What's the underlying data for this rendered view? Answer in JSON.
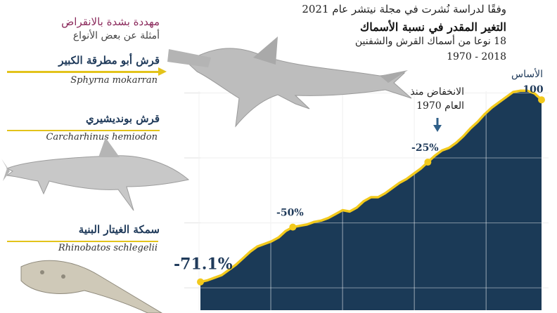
{
  "header": {
    "source": "وفقًا لدراسة نُشرت في مجلة نيتشر عام 2021",
    "title": "التغير المقدر في نسبة الأسماك",
    "subtitle_line1": "18 نوعا من أسماك القرش والشفنين",
    "subtitle_line2": "1970 - 2018"
  },
  "panel": {
    "title": "مهددة بشدة بالانقراض",
    "subtitle": "أمثلة عن بعض الأنواع",
    "species": [
      {
        "name": "قرش أبو مطرقة الكبير",
        "latin": "Sphyrna mokarran",
        "icon": "hammerhead-shark-icon"
      },
      {
        "name": "قرش بونديشيري",
        "latin": "Carcharhinus hemiodon",
        "icon": "requiem-shark-icon"
      },
      {
        "name": "سمكة الغيتار البنية",
        "latin": "Rhinobatos schlegelii",
        "icon": "guitarfish-icon"
      }
    ]
  },
  "colors": {
    "area": "#1b3a57",
    "line": "#f2c91c",
    "label": "#1f3a5a",
    "accent_line": "#e3c31b",
    "grid": "#ffffff"
  },
  "chart_data": {
    "type": "area",
    "baseline_label": "الأساس",
    "annotation": "الانخفاض منذ العام 1970",
    "x": [
      1970,
      1971,
      1972,
      1973,
      1974,
      1975,
      1976,
      1977,
      1978,
      1979,
      1980,
      1981,
      1982,
      1983,
      1984,
      1985,
      1986,
      1987,
      1988,
      1989,
      1990,
      1991,
      1992,
      1993,
      1994,
      1995,
      1996,
      1997,
      1998,
      1999,
      2000,
      2001,
      2002,
      2003,
      2004,
      2005,
      2006,
      2007,
      2008,
      2009,
      2010,
      2011,
      2012,
      2013,
      2014,
      2015,
      2016,
      2017,
      2018
    ],
    "y": [
      -71.1,
      -70.5,
      -69.5,
      -68.5,
      -66.5,
      -64.5,
      -62,
      -59.5,
      -57.5,
      -56.5,
      -55.5,
      -54,
      -51.5,
      -50,
      -49.5,
      -49,
      -48,
      -47.5,
      -46.5,
      -45,
      -43.5,
      -44,
      -42.5,
      -40,
      -38.5,
      -38.5,
      -37,
      -35,
      -33,
      -31.5,
      -29.5,
      -27.5,
      -25,
      -22.5,
      -20.5,
      -19.5,
      -17.5,
      -15,
      -12,
      -9.5,
      -6.5,
      -4,
      -2,
      0,
      2,
      2.5,
      2.5,
      1.5,
      -1
    ],
    "labels": [
      {
        "x": 1970,
        "text": "-71.1%"
      },
      {
        "x": 1983,
        "text": "-50%"
      },
      {
        "x": 2002,
        "text": "-25%"
      },
      {
        "x": 2018,
        "text": "100"
      }
    ],
    "ylim": [
      -82,
      5
    ],
    "xlim": [
      1970,
      2018
    ],
    "grid": true
  }
}
